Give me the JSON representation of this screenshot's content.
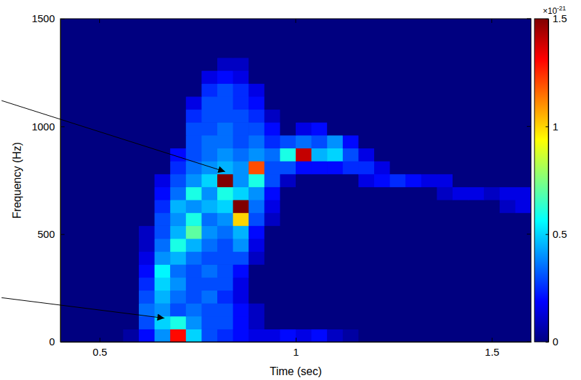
{
  "chart_data": {
    "type": "heatmap",
    "x_label": "Time (sec)",
    "y_label": "Frequency (Hz)",
    "xlim": [
      0.4,
      1.6
    ],
    "xticks": [
      0.5,
      1,
      1.5
    ],
    "ylim": [
      0,
      1500
    ],
    "yticks": [
      0,
      500,
      1000,
      1500
    ],
    "x": [
      0.42,
      0.46,
      0.5,
      0.54,
      0.58,
      0.62,
      0.66,
      0.7,
      0.74,
      0.78,
      0.82,
      0.86,
      0.9,
      0.94,
      0.98,
      1.02,
      1.06,
      1.1,
      1.14,
      1.18,
      1.22,
      1.26,
      1.3,
      1.34,
      1.38,
      1.42,
      1.46,
      1.5,
      1.54,
      1.58
    ],
    "y": [
      30,
      90,
      150,
      210,
      270,
      330,
      390,
      450,
      510,
      570,
      630,
      690,
      750,
      810,
      870,
      930,
      990,
      1050,
      1110,
      1170,
      1230,
      1290,
      1350,
      1410,
      1470
    ],
    "values": [
      [
        0,
        0,
        0,
        0,
        0.05,
        0.2,
        0.4,
        1.3,
        0.5,
        0.3,
        0.25,
        0.2,
        0.15,
        0.15,
        0.2,
        0.15,
        0.2,
        0.1,
        0.05,
        0,
        0,
        0,
        0,
        0,
        0,
        0,
        0,
        0,
        0,
        0
      ],
      [
        0,
        0,
        0,
        0,
        0,
        0.3,
        0.5,
        0.6,
        0.4,
        0.3,
        0.3,
        0.2,
        0.1,
        0,
        0,
        0,
        0,
        0,
        0,
        0,
        0,
        0,
        0,
        0,
        0,
        0,
        0,
        0,
        0,
        0
      ],
      [
        0,
        0,
        0,
        0,
        0,
        0.35,
        0.4,
        0.3,
        0.35,
        0.3,
        0.3,
        0.2,
        0.1,
        0,
        0,
        0,
        0,
        0,
        0,
        0,
        0,
        0,
        0,
        0,
        0,
        0,
        0,
        0,
        0,
        0
      ],
      [
        0,
        0,
        0,
        0,
        0,
        0.3,
        0.45,
        0.35,
        0.3,
        0.35,
        0.25,
        0.15,
        0,
        0,
        0,
        0,
        0,
        0,
        0,
        0,
        0,
        0,
        0,
        0,
        0,
        0,
        0,
        0,
        0,
        0
      ],
      [
        0,
        0,
        0,
        0,
        0,
        0.25,
        0.5,
        0.4,
        0.3,
        0.3,
        0.3,
        0.15,
        0,
        0,
        0,
        0,
        0,
        0,
        0,
        0,
        0,
        0,
        0,
        0,
        0,
        0,
        0,
        0,
        0,
        0
      ],
      [
        0,
        0,
        0,
        0,
        0,
        0.2,
        0.55,
        0.35,
        0.3,
        0.35,
        0.3,
        0.2,
        0,
        0,
        0,
        0,
        0,
        0,
        0,
        0,
        0,
        0,
        0,
        0,
        0,
        0,
        0,
        0,
        0,
        0
      ],
      [
        0,
        0,
        0,
        0,
        0,
        0.15,
        0.4,
        0.45,
        0.35,
        0.3,
        0.3,
        0.3,
        0.1,
        0,
        0,
        0,
        0,
        0,
        0,
        0,
        0,
        0,
        0,
        0,
        0,
        0,
        0,
        0,
        0,
        0
      ],
      [
        0,
        0,
        0,
        0,
        0,
        0.1,
        0.35,
        0.6,
        0.45,
        0.35,
        0.3,
        0.4,
        0.15,
        0,
        0,
        0,
        0,
        0,
        0,
        0,
        0,
        0,
        0,
        0,
        0,
        0,
        0,
        0,
        0,
        0
      ],
      [
        0,
        0,
        0,
        0,
        0,
        0.1,
        0.3,
        0.45,
        0.7,
        0.4,
        0.35,
        0.45,
        0.2,
        0,
        0,
        0,
        0,
        0,
        0,
        0,
        0,
        0,
        0,
        0,
        0,
        0,
        0,
        0,
        0,
        0
      ],
      [
        0,
        0,
        0,
        0,
        0,
        0,
        0.3,
        0.4,
        0.6,
        0.35,
        0.4,
        1.0,
        0.3,
        0.1,
        0,
        0,
        0,
        0,
        0,
        0,
        0,
        0,
        0,
        0,
        0,
        0,
        0,
        0,
        0,
        0
      ],
      [
        0,
        0,
        0,
        0,
        0,
        0,
        0.25,
        0.45,
        0.4,
        0.45,
        0.5,
        1.5,
        0.35,
        0.15,
        0,
        0,
        0,
        0,
        0,
        0,
        0,
        0,
        0,
        0,
        0,
        0,
        0,
        0,
        0.1,
        0.15
      ],
      [
        0,
        0,
        0,
        0,
        0,
        0,
        0.2,
        0.35,
        0.6,
        0.4,
        0.6,
        0.5,
        0.4,
        0.2,
        0,
        0,
        0,
        0,
        0,
        0,
        0,
        0,
        0,
        0,
        0.1,
        0.15,
        0.15,
        0.1,
        0.15,
        0.15
      ],
      [
        0,
        0,
        0,
        0,
        0,
        0,
        0.15,
        0.3,
        0.4,
        0.5,
        1.5,
        0.4,
        0.6,
        0.3,
        0.1,
        0,
        0,
        0,
        0,
        0.15,
        0.2,
        0.25,
        0.2,
        0.15,
        0.15,
        0,
        0,
        0,
        0,
        0
      ],
      [
        0,
        0,
        0,
        0,
        0,
        0,
        0,
        0.25,
        0.35,
        0.4,
        0.45,
        0.4,
        1.2,
        0.3,
        0.3,
        0.2,
        0.2,
        0.2,
        0.25,
        0.25,
        0.15,
        0,
        0,
        0,
        0,
        0,
        0,
        0,
        0,
        0
      ],
      [
        0,
        0,
        0,
        0,
        0,
        0,
        0,
        0.2,
        0.3,
        0.35,
        0.4,
        0.35,
        0.4,
        0.35,
        0.6,
        1.4,
        0.45,
        0.5,
        0.3,
        0.15,
        0,
        0,
        0,
        0,
        0,
        0,
        0,
        0,
        0,
        0
      ],
      [
        0,
        0,
        0,
        0,
        0,
        0,
        0,
        0,
        0.3,
        0.35,
        0.35,
        0.3,
        0.35,
        0.25,
        0.3,
        0.35,
        0.3,
        0.4,
        0.2,
        0,
        0,
        0,
        0,
        0,
        0,
        0,
        0,
        0,
        0,
        0
      ],
      [
        0,
        0,
        0,
        0,
        0,
        0,
        0,
        0,
        0.3,
        0.3,
        0.35,
        0.3,
        0.3,
        0.2,
        0,
        0.15,
        0.2,
        0,
        0,
        0,
        0,
        0,
        0,
        0,
        0,
        0,
        0,
        0,
        0,
        0
      ],
      [
        0,
        0,
        0,
        0,
        0,
        0,
        0,
        0,
        0.25,
        0.3,
        0.3,
        0.3,
        0.25,
        0.1,
        0,
        0,
        0,
        0,
        0,
        0,
        0,
        0,
        0,
        0,
        0,
        0,
        0,
        0,
        0,
        0
      ],
      [
        0,
        0,
        0,
        0,
        0,
        0,
        0,
        0,
        0.15,
        0.3,
        0.3,
        0.25,
        0.2,
        0,
        0,
        0,
        0,
        0,
        0,
        0,
        0,
        0,
        0,
        0,
        0,
        0,
        0,
        0,
        0,
        0
      ],
      [
        0,
        0,
        0,
        0,
        0,
        0,
        0,
        0,
        0,
        0.25,
        0.3,
        0.25,
        0.15,
        0,
        0,
        0,
        0,
        0,
        0,
        0,
        0,
        0,
        0,
        0,
        0,
        0,
        0,
        0,
        0,
        0
      ],
      [
        0,
        0,
        0,
        0,
        0,
        0,
        0,
        0,
        0,
        0.15,
        0.2,
        0.15,
        0,
        0,
        0,
        0,
        0,
        0,
        0,
        0,
        0,
        0,
        0,
        0,
        0,
        0,
        0,
        0,
        0,
        0
      ],
      [
        0,
        0,
        0,
        0,
        0,
        0,
        0,
        0,
        0,
        0,
        0.1,
        0.1,
        0,
        0,
        0,
        0,
        0,
        0,
        0,
        0,
        0,
        0,
        0,
        0,
        0,
        0,
        0,
        0,
        0,
        0
      ],
      [
        0,
        0,
        0,
        0,
        0,
        0,
        0,
        0,
        0,
        0,
        0,
        0,
        0,
        0,
        0,
        0,
        0,
        0,
        0,
        0,
        0,
        0,
        0,
        0,
        0,
        0,
        0,
        0,
        0,
        0
      ],
      [
        0,
        0,
        0,
        0,
        0,
        0,
        0,
        0,
        0,
        0,
        0,
        0,
        0,
        0,
        0,
        0,
        0,
        0,
        0,
        0,
        0,
        0,
        0,
        0,
        0,
        0,
        0,
        0,
        0,
        0
      ],
      [
        0,
        0,
        0,
        0,
        0,
        0,
        0,
        0,
        0,
        0,
        0,
        0,
        0,
        0,
        0,
        0,
        0,
        0,
        0,
        0,
        0,
        0,
        0,
        0,
        0,
        0,
        0,
        0,
        0,
        0
      ]
    ],
    "colorbar": {
      "range": [
        0,
        1.5
      ],
      "ticks": [
        0,
        0.5,
        1,
        1.5
      ],
      "multiplier": {
        "base": "×10",
        "exponent": "-21"
      }
    },
    "annotations": [
      {
        "x": 0.82,
        "y": 790,
        "from_x": 0.25,
        "from_y": 1120
      },
      {
        "x": 0.665,
        "y": 110,
        "from_x": 0.25,
        "from_y": 205
      }
    ]
  }
}
